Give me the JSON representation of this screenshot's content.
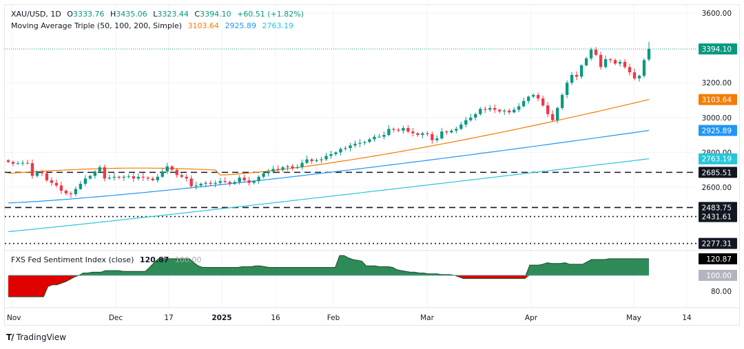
{
  "header": {
    "symbol": "XAU/USD, 1D",
    "open_label": "O",
    "open": "3333.76",
    "high_label": "H",
    "high": "3435.06",
    "low_label": "L",
    "low": "3323.44",
    "close_label": "C",
    "close": "3394.10",
    "change": "+60.51 (+1.82%)",
    "ma_title": "Moving Average Triple (50, 100, 200, Simple)",
    "ma50": "3103.64",
    "ma100": "2925.89",
    "ma200": "2763.19"
  },
  "sentiment": {
    "title": "FXS Fed Sentiment Index (close)",
    "value": "120.87",
    "baseline": "100.00"
  },
  "branding": {
    "name": "TradingView"
  },
  "colors": {
    "up": "#089981",
    "down": "#f23645",
    "ma50": "#f57c00",
    "ma100": "#2196f3",
    "ma200": "#26c6da",
    "sent_pos": "#2e8b57",
    "sent_neg": "#e00000"
  },
  "chart_data": [
    {
      "type": "candlestick",
      "title": "XAU/USD, 1D",
      "ylim": [
        2200,
        3650
      ],
      "price_ticks": [
        "3600.00",
        "3200.00",
        "3000.00",
        "2800.00",
        "2600.00"
      ],
      "x_ticks": [
        "Nov",
        "Dec",
        "17",
        "2025",
        "16",
        "Feb",
        "Mar",
        "Apr",
        "May",
        "14"
      ],
      "price_tags": [
        {
          "label": "3394.10",
          "value": 3394.1,
          "kind": "last"
        },
        {
          "label": "3103.64",
          "value": 3103.64,
          "kind": "ma50"
        },
        {
          "label": "2925.89",
          "value": 2925.89,
          "kind": "ma100"
        },
        {
          "label": "2763.19",
          "value": 2763.19,
          "kind": "ma200"
        },
        {
          "label": "2685.51",
          "value": 2685.51,
          "kind": "level"
        },
        {
          "label": "2483.75",
          "value": 2483.75,
          "kind": "level"
        },
        {
          "label": "2431.61",
          "value": 2431.61,
          "kind": "level"
        },
        {
          "label": "2277.31",
          "value": 2277.31,
          "kind": "level"
        }
      ],
      "horizontal_levels": [
        {
          "value": 2685.51,
          "style": "dashed"
        },
        {
          "value": 2483.75,
          "style": "dashed"
        },
        {
          "value": 2431.61,
          "style": "dotted"
        },
        {
          "value": 2277.31,
          "style": "dotted"
        }
      ],
      "closes": [
        2745,
        2735,
        2738,
        2740,
        2738,
        2665,
        2690,
        2680,
        2640,
        2625,
        2610,
        2580,
        2565,
        2560,
        2590,
        2620,
        2650,
        2665,
        2690,
        2715,
        2650,
        2655,
        2660,
        2655,
        2660,
        2663,
        2650,
        2660,
        2655,
        2650,
        2640,
        2660,
        2690,
        2720,
        2700,
        2670,
        2660,
        2650,
        2605,
        2610,
        2620,
        2625,
        2620,
        2625,
        2635,
        2630,
        2620,
        2630,
        2655,
        2640,
        2625,
        2635,
        2660,
        2680,
        2690,
        2705,
        2700,
        2715,
        2720,
        2710,
        2715,
        2740,
        2760,
        2750,
        2755,
        2760,
        2780,
        2790,
        2800,
        2820,
        2825,
        2840,
        2850,
        2855,
        2860,
        2875,
        2890,
        2890,
        2900,
        2935,
        2930,
        2925,
        2940,
        2920,
        2910,
        2900,
        2910,
        2905,
        2870,
        2880,
        2920,
        2915,
        2925,
        2935,
        2960,
        2985,
        3000,
        3020,
        3050,
        3045,
        3055,
        3045,
        3035,
        3040,
        3030,
        3045,
        3065,
        3095,
        3120,
        3130,
        3110,
        3070,
        3020,
        2985,
        3055,
        3130,
        3200,
        3245,
        3235,
        3300,
        3340,
        3390,
        3360,
        3290,
        3335,
        3330,
        3310,
        3320,
        3290,
        3260,
        3225,
        3240,
        3330,
        3394.1
      ],
      "ma50": {
        "start": 2680,
        "end": 3103.64
      },
      "ma100": {
        "start": 2510,
        "end": 2925.89
      },
      "ma200": {
        "start": 2345,
        "end": 2763.19
      }
    },
    {
      "type": "area",
      "title": "FXS Fed Sentiment Index (close)",
      "ylim": [
        75,
        125
      ],
      "y_ticks": [
        "120.87",
        "100.00",
        "80.00"
      ],
      "baseline": 100,
      "values": [
        73,
        73,
        73,
        73,
        73,
        73,
        73,
        73,
        73,
        86,
        88,
        88,
        90,
        92,
        95,
        98,
        100,
        103,
        103,
        104,
        104,
        104,
        106,
        106,
        106,
        106,
        105,
        105,
        105,
        105,
        105,
        105,
        110,
        116,
        121,
        121,
        121,
        121,
        121,
        121,
        121,
        121,
        116,
        112,
        110,
        110,
        110,
        110,
        110,
        110,
        110,
        110,
        110,
        111,
        111,
        111,
        112,
        112,
        111,
        110,
        110,
        110,
        110,
        110,
        110,
        110,
        110,
        110,
        110,
        110,
        110,
        110,
        110,
        110,
        110,
        125,
        125,
        122,
        120,
        119,
        118,
        112,
        112,
        112,
        111,
        111,
        111,
        110,
        107,
        106,
        105,
        104,
        104,
        103,
        103,
        102,
        102,
        102,
        101,
        101,
        101,
        100,
        98,
        96,
        96,
        96,
        96,
        96,
        96,
        96,
        96,
        96,
        96,
        96,
        96,
        96,
        96,
        96,
        113,
        113,
        113,
        114,
        116,
        115,
        115,
        115,
        116,
        114,
        114,
        114,
        114,
        117,
        120,
        120,
        120,
        120,
        121,
        121,
        121,
        121,
        121,
        121,
        121,
        121,
        121,
        121
      ]
    }
  ]
}
